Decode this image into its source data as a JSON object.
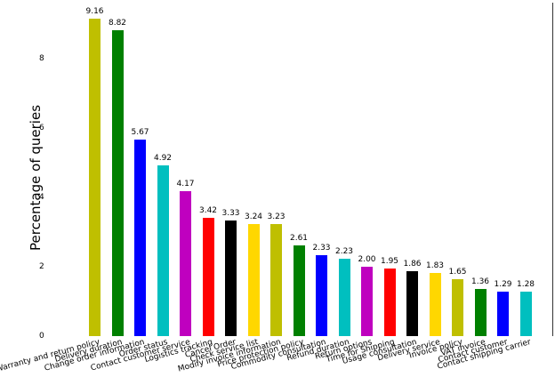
{
  "chart_data": {
    "type": "bar",
    "title": "",
    "xlabel": "",
    "ylabel": "Percentage of queries",
    "ylim": [
      0,
      9.5
    ],
    "yticks": [
      0,
      2,
      4,
      6,
      8
    ],
    "grid": false,
    "legend": null,
    "categories": [
      "Warranty and return policy",
      "Delivery duration",
      "Change order information",
      "Order status",
      "Contact customer service",
      "Logistics tracking",
      "Cancel Order",
      "Check service list",
      "Modify invoice information",
      "Price protection policy",
      "Commodity consultation",
      "Refund duration",
      "Return options",
      "Time for Shipping",
      "Usage consultation",
      "Delivery service",
      "Invoice policy",
      "VAT invoice",
      "Contact customer",
      "Contact shipping carrier"
    ],
    "values": [
      9.16,
      8.82,
      5.67,
      4.92,
      4.17,
      3.42,
      3.33,
      3.24,
      3.23,
      2.61,
      2.33,
      2.23,
      2.0,
      1.95,
      1.86,
      1.83,
      1.65,
      1.36,
      1.29,
      1.28
    ],
    "value_labels": [
      "9.16",
      "8.82",
      "5.67",
      "4.92",
      "4.17",
      "3.42",
      "3.33",
      "3.24",
      "3.23",
      "2.61",
      "2.33",
      "2.23",
      "2.00",
      "1.95",
      "1.86",
      "1.83",
      "1.65",
      "1.36",
      "1.29",
      "1.28"
    ],
    "colors": [
      "#bfbf00",
      "#008000",
      "#0000ff",
      "#00bfbf",
      "#bf00bf",
      "#ff0000",
      "#000000",
      "#ffd700",
      "#bfbf00",
      "#008000",
      "#0000ff",
      "#00bfbf",
      "#bf00bf",
      "#ff0000",
      "#000000",
      "#ffd700",
      "#bfbf00",
      "#008000",
      "#0000ff",
      "#00bfbf"
    ]
  }
}
